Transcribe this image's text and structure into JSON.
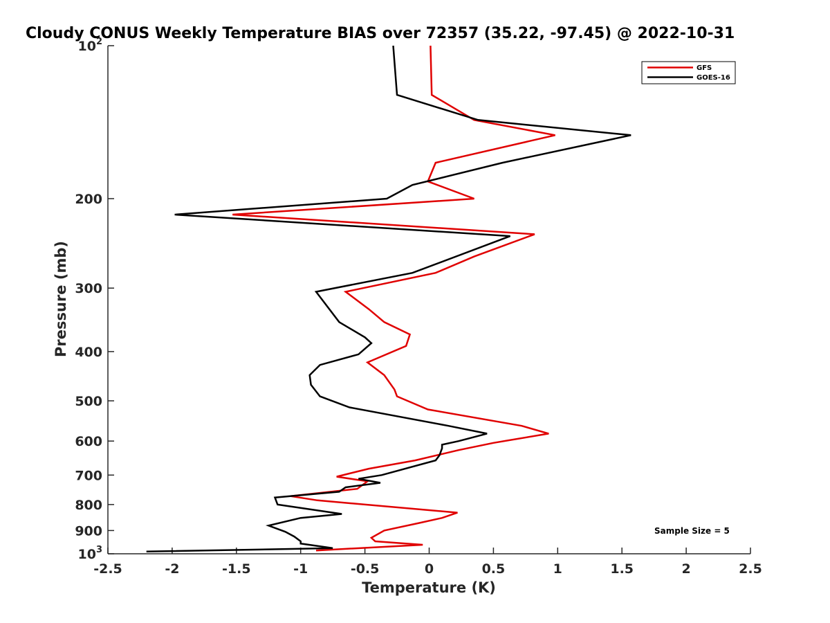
{
  "chart_data": {
    "type": "line",
    "title": "Cloudy CONUS Weekly Temperature BIAS over 72357 (35.22, -97.45) @ 2022-10-31",
    "xlabel": "Temperature (K)",
    "ylabel": "Pressure (mb)",
    "xlim": [
      -2.5,
      2.5
    ],
    "ylim": [
      1000,
      100
    ],
    "y_scale": "log",
    "y_reversed": true,
    "grid": false,
    "legend_position": "top-right",
    "x_ticks": [
      {
        "value": -2.5,
        "label": "-2.5"
      },
      {
        "value": -2,
        "label": "-2"
      },
      {
        "value": -1.5,
        "label": "-1.5"
      },
      {
        "value": -1,
        "label": "-1"
      },
      {
        "value": -0.5,
        "label": "-0.5"
      },
      {
        "value": 0,
        "label": "0"
      },
      {
        "value": 0.5,
        "label": "0.5"
      },
      {
        "value": 1,
        "label": "1"
      },
      {
        "value": 1.5,
        "label": "1.5"
      },
      {
        "value": 2,
        "label": "2"
      },
      {
        "value": 2.5,
        "label": "2.5"
      }
    ],
    "y_ticks": [
      {
        "value": 100,
        "base": "10",
        "sup": "2"
      },
      {
        "value": 200,
        "label": "200"
      },
      {
        "value": 300,
        "label": "300"
      },
      {
        "value": 400,
        "label": "400"
      },
      {
        "value": 500,
        "label": "500"
      },
      {
        "value": 600,
        "label": "600"
      },
      {
        "value": 700,
        "label": "700"
      },
      {
        "value": 800,
        "label": "800"
      },
      {
        "value": 900,
        "label": "900"
      },
      {
        "value": 1000,
        "base": "10",
        "sup": "3"
      }
    ],
    "series": [
      {
        "name": "GFS",
        "color": "#e00000",
        "points": [
          [
            0.01,
            100
          ],
          [
            0.02,
            125
          ],
          [
            0.35,
            140
          ],
          [
            0.98,
            150
          ],
          [
            0.05,
            170
          ],
          [
            -0.01,
            185
          ],
          [
            0.35,
            200
          ],
          [
            -1.53,
            215
          ],
          [
            0.82,
            235
          ],
          [
            0.35,
            260
          ],
          [
            0.05,
            280
          ],
          [
            -0.65,
            305
          ],
          [
            -0.47,
            330
          ],
          [
            -0.35,
            350
          ],
          [
            -0.15,
            370
          ],
          [
            -0.18,
            390
          ],
          [
            -0.48,
            420
          ],
          [
            -0.35,
            445
          ],
          [
            -0.27,
            475
          ],
          [
            -0.25,
            490
          ],
          [
            -0.01,
            520
          ],
          [
            0.72,
            560
          ],
          [
            0.93,
            580
          ],
          [
            0.5,
            605
          ],
          [
            0.23,
            625
          ],
          [
            -0.11,
            655
          ],
          [
            -0.47,
            680
          ],
          [
            -0.72,
            705
          ],
          [
            -0.48,
            720
          ],
          [
            -0.56,
            745
          ],
          [
            -1.08,
            770
          ],
          [
            -0.87,
            785
          ],
          [
            0.22,
            830
          ],
          [
            0.1,
            850
          ],
          [
            -0.08,
            870
          ],
          [
            -0.35,
            900
          ],
          [
            -0.45,
            930
          ],
          [
            -0.42,
            945
          ],
          [
            -0.05,
            960
          ],
          [
            -0.88,
            985
          ]
        ]
      },
      {
        "name": "GOES-16",
        "color": "#000000",
        "points": [
          [
            -0.28,
            100
          ],
          [
            -0.25,
            125
          ],
          [
            0.38,
            140
          ],
          [
            1.57,
            150
          ],
          [
            0.57,
            170
          ],
          [
            -0.13,
            188
          ],
          [
            -0.33,
            200
          ],
          [
            -1.98,
            215
          ],
          [
            0.63,
            237
          ],
          [
            -0.13,
            280
          ],
          [
            -0.88,
            305
          ],
          [
            -0.7,
            350
          ],
          [
            -0.5,
            375
          ],
          [
            -0.45,
            385
          ],
          [
            -0.55,
            405
          ],
          [
            -0.85,
            425
          ],
          [
            -0.93,
            445
          ],
          [
            -0.92,
            465
          ],
          [
            -0.85,
            490
          ],
          [
            -0.62,
            515
          ],
          [
            0.15,
            560
          ],
          [
            0.45,
            580
          ],
          [
            0.23,
            600
          ],
          [
            0.1,
            610
          ],
          [
            0.1,
            620
          ],
          [
            0.08,
            640
          ],
          [
            0.05,
            655
          ],
          [
            -0.37,
            700
          ],
          [
            -0.55,
            712
          ],
          [
            -0.38,
            725
          ],
          [
            -0.65,
            740
          ],
          [
            -0.7,
            755
          ],
          [
            -1.2,
            775
          ],
          [
            -1.18,
            800
          ],
          [
            -0.68,
            835
          ],
          [
            -1.0,
            850
          ],
          [
            -1.25,
            880
          ],
          [
            -1.12,
            905
          ],
          [
            -1.05,
            925
          ],
          [
            -1.0,
            945
          ],
          [
            -1.0,
            955
          ],
          [
            -0.75,
            975
          ],
          [
            -2.2,
            990
          ]
        ]
      }
    ],
    "annotations": [
      {
        "text": "Sample Size = 5"
      }
    ]
  }
}
